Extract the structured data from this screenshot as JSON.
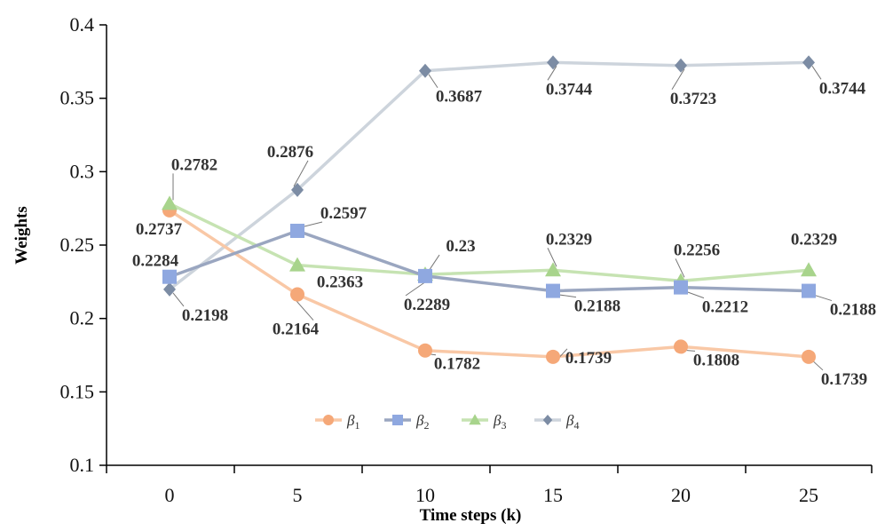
{
  "chart_data": {
    "type": "line",
    "title": "",
    "xlabel": "Time steps (k)",
    "ylabel": "Weights",
    "x": [
      0,
      5,
      10,
      15,
      20,
      25
    ],
    "x_tick_labels": [
      "0",
      "5",
      "10",
      "15",
      "20",
      "25"
    ],
    "ylim": [
      0.1,
      0.4
    ],
    "y_ticks": [
      0.1,
      0.15,
      0.2,
      0.25,
      0.3,
      0.35,
      0.4
    ],
    "y_tick_labels": [
      "0.1",
      "0.15",
      "0.2",
      "0.25",
      "0.3",
      "0.35",
      "0.4"
    ],
    "grid": false,
    "legend_position": "bottom-center-inside",
    "series": [
      {
        "name": "β1",
        "symbol": "β",
        "subscript": "1",
        "marker": "circle",
        "color": "#F5A878",
        "line_color": "#F9C8A6",
        "values": [
          0.2737,
          0.2164,
          0.1782,
          0.1739,
          0.1808,
          0.1739
        ],
        "labels": [
          "0.2737",
          "0.2164",
          "0.1782",
          "0.1739",
          "0.1808",
          "0.1739"
        ]
      },
      {
        "name": "β2",
        "symbol": "β",
        "subscript": "2",
        "marker": "square",
        "color": "#8FA8E0",
        "line_color": "#9AA6C0",
        "values": [
          0.2284,
          0.2597,
          0.2289,
          0.2188,
          0.2212,
          0.2188
        ],
        "labels": [
          "0.2284",
          "0.2597",
          "0.2289",
          "0.2188",
          "0.2212",
          "0.2188"
        ]
      },
      {
        "name": "β3",
        "symbol": "β",
        "subscript": "3",
        "marker": "triangle",
        "color": "#A8D48C",
        "line_color": "#C6E3B2",
        "values": [
          0.2782,
          0.2363,
          0.23,
          0.2329,
          0.2256,
          0.2329
        ],
        "labels": [
          "0.2782",
          "0.2363",
          "0.23",
          "0.2329",
          "0.2256",
          "0.2329"
        ]
      },
      {
        "name": "β4",
        "symbol": "β",
        "subscript": "4",
        "marker": "diamond",
        "color": "#7C8CA4",
        "line_color": "#CDD4DC",
        "values": [
          0.2198,
          0.2876,
          0.3687,
          0.3744,
          0.3723,
          0.3744
        ],
        "labels": [
          "0.2198",
          "0.2876",
          "0.3687",
          "0.3744",
          "0.3723",
          "0.3744"
        ]
      }
    ]
  }
}
